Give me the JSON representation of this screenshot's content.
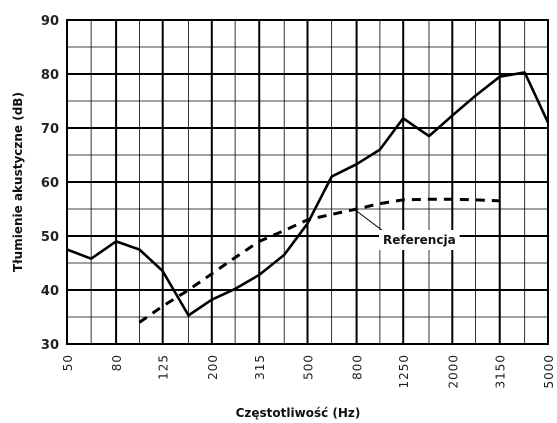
{
  "chart_data": {
    "type": "line",
    "title": "",
    "xlabel": "Częstotliwość (Hz)",
    "ylabel": "Tłumienie akustyczne (dB)",
    "x_scale": "log",
    "x_ticks": [
      "50",
      "80",
      "125",
      "200",
      "315",
      "500",
      "800",
      "1250",
      "2000",
      "3150",
      "5000"
    ],
    "x": [
      50,
      63,
      80,
      100,
      125,
      160,
      200,
      250,
      315,
      400,
      500,
      630,
      800,
      1000,
      1250,
      1600,
      2000,
      2500,
      3150,
      4000,
      5000
    ],
    "ylim": [
      30,
      90
    ],
    "y_ticks": [
      "30",
      "40",
      "50",
      "60",
      "70",
      "80",
      "90"
    ],
    "grid": true,
    "legend": "none",
    "series": [
      {
        "style": "solid",
        "color": "#000000",
        "values": [
          47.5,
          45.8,
          49.0,
          47.5,
          43.5,
          35.3,
          38.2,
          40.2,
          42.8,
          46.5,
          52.3,
          61.0,
          63.3,
          66.0,
          71.8,
          68.5,
          72.3,
          76.0,
          79.5,
          80.3,
          71.0
        ]
      },
      {
        "name": "Referencja",
        "style": "dashed",
        "color": "#000000",
        "values": [
          null,
          null,
          null,
          34.0,
          37.0,
          40.0,
          43.0,
          46.0,
          49.0,
          51.0,
          53.0,
          54.0,
          55.0,
          56.0,
          56.7,
          56.8,
          56.8,
          56.7,
          56.5,
          null,
          null
        ]
      }
    ],
    "annotations": [
      {
        "text": "Referencja",
        "points_to_x": 800,
        "points_to_y": 55.0
      }
    ]
  }
}
